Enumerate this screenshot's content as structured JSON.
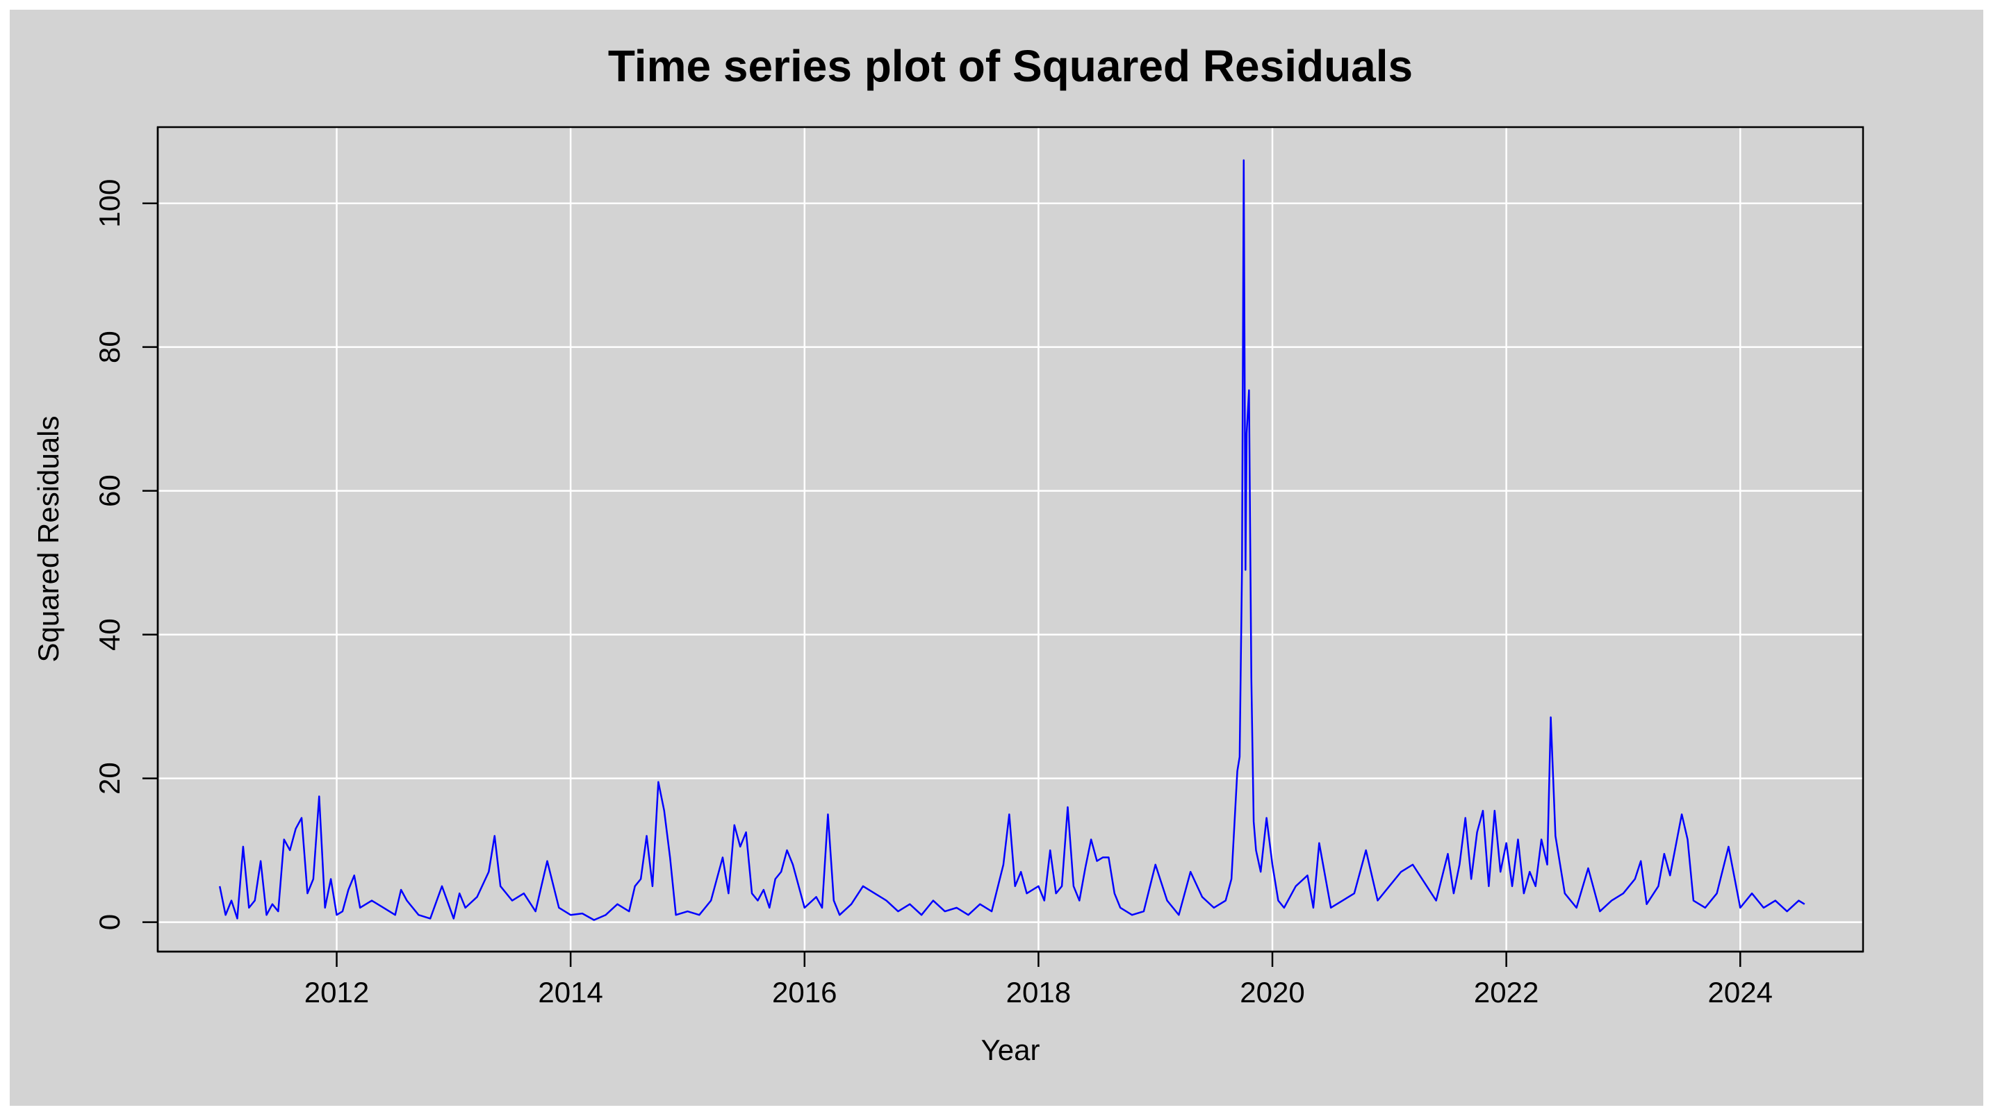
{
  "chart_data": {
    "type": "line",
    "title": "Time series plot of Squared Residuals",
    "x_label": "Year",
    "y_label": "Squared Residuals",
    "xlim": [
      2010.47,
      2025.05
    ],
    "ylim": [
      -4.1,
      110.6
    ],
    "xticks": [
      2012,
      2014,
      2016,
      2018,
      2020,
      2022,
      2024
    ],
    "yticks": [
      0,
      20,
      40,
      60,
      80,
      100
    ],
    "grid": true,
    "series": [
      {
        "name": "Squared Residuals",
        "color": "#0000ff",
        "x": [
          2011.0,
          2011.05,
          2011.1,
          2011.15,
          2011.2,
          2011.25,
          2011.3,
          2011.35,
          2011.4,
          2011.45,
          2011.5,
          2011.55,
          2011.6,
          2011.65,
          2011.7,
          2011.75,
          2011.8,
          2011.85,
          2011.9,
          2011.95,
          2012.0,
          2012.05,
          2012.1,
          2012.15,
          2012.2,
          2012.3,
          2012.4,
          2012.5,
          2012.55,
          2012.6,
          2012.7,
          2012.8,
          2012.9,
          2013.0,
          2013.05,
          2013.1,
          2013.2,
          2013.3,
          2013.35,
          2013.4,
          2013.5,
          2013.6,
          2013.7,
          2013.8,
          2013.9,
          2014.0,
          2014.1,
          2014.2,
          2014.3,
          2014.4,
          2014.5,
          2014.55,
          2014.6,
          2014.65,
          2014.7,
          2014.75,
          2014.8,
          2014.85,
          2014.9,
          2015.0,
          2015.1,
          2015.2,
          2015.3,
          2015.35,
          2015.4,
          2015.45,
          2015.5,
          2015.55,
          2015.6,
          2015.65,
          2015.7,
          2015.75,
          2015.8,
          2015.85,
          2015.9,
          2015.95,
          2016.0,
          2016.1,
          2016.15,
          2016.2,
          2016.25,
          2016.3,
          2016.4,
          2016.5,
          2016.6,
          2016.7,
          2016.8,
          2016.9,
          2017.0,
          2017.1,
          2017.2,
          2017.3,
          2017.4,
          2017.5,
          2017.6,
          2017.7,
          2017.75,
          2017.8,
          2017.85,
          2017.9,
          2018.0,
          2018.05,
          2018.1,
          2018.15,
          2018.2,
          2018.25,
          2018.3,
          2018.35,
          2018.4,
          2018.45,
          2018.5,
          2018.55,
          2018.6,
          2018.65,
          2018.7,
          2018.8,
          2018.9,
          2019.0,
          2019.1,
          2019.2,
          2019.3,
          2019.4,
          2019.5,
          2019.6,
          2019.65,
          2019.7,
          2019.72,
          2019.74,
          2019.755,
          2019.77,
          2019.78,
          2019.8,
          2019.82,
          2019.84,
          2019.86,
          2019.9,
          2019.95,
          2020.0,
          2020.05,
          2020.1,
          2020.2,
          2020.3,
          2020.35,
          2020.4,
          2020.5,
          2020.6,
          2020.7,
          2020.8,
          2020.9,
          2021.0,
          2021.1,
          2021.2,
          2021.3,
          2021.4,
          2021.5,
          2021.55,
          2021.6,
          2021.65,
          2021.7,
          2021.75,
          2021.8,
          2021.85,
          2021.9,
          2021.95,
          2022.0,
          2022.05,
          2022.1,
          2022.15,
          2022.2,
          2022.25,
          2022.3,
          2022.35,
          2022.38,
          2022.42,
          2022.5,
          2022.6,
          2022.7,
          2022.8,
          2022.9,
          2023.0,
          2023.1,
          2023.15,
          2023.2,
          2023.3,
          2023.35,
          2023.4,
          2023.5,
          2023.55,
          2023.6,
          2023.7,
          2023.8,
          2023.9,
          2024.0,
          2024.1,
          2024.2,
          2024.3,
          2024.4,
          2024.5,
          2024.55
        ],
        "values": [
          5,
          1,
          3,
          0.5,
          10.5,
          2,
          3,
          8.5,
          1,
          2.5,
          1.5,
          11.5,
          10,
          13,
          14.5,
          4,
          6,
          17.5,
          2,
          6,
          1,
          1.5,
          4.5,
          6.5,
          2,
          3,
          2,
          1,
          4.5,
          3,
          1,
          0.5,
          5,
          0.5,
          4,
          2,
          3.5,
          7,
          12,
          5,
          3,
          4,
          1.5,
          8.5,
          2,
          1,
          1.2,
          0.3,
          1,
          2.5,
          1.5,
          5,
          6,
          12,
          5,
          19.5,
          15.5,
          9,
          1,
          1.5,
          1,
          3,
          9,
          4,
          13.5,
          10.5,
          12.5,
          4,
          3,
          4.5,
          2,
          6,
          7,
          10,
          8,
          5,
          2,
          3.5,
          2,
          15,
          3,
          1,
          2.5,
          5,
          4,
          3,
          1.5,
          2.5,
          1,
          3,
          1.5,
          2,
          1,
          2.5,
          1.5,
          8,
          15,
          5,
          7,
          4,
          5,
          3,
          10,
          4,
          5,
          16,
          5,
          3,
          7.5,
          11.5,
          8.5,
          9,
          9,
          4,
          2,
          1,
          1.5,
          8,
          3,
          1,
          7,
          3.5,
          2,
          3,
          6,
          21,
          23,
          49,
          106,
          49,
          68,
          74,
          34,
          14,
          10,
          7,
          14.5,
          8,
          3,
          2,
          5,
          6.5,
          2,
          11,
          2,
          3,
          4,
          10,
          3,
          5,
          7,
          8,
          5.5,
          3,
          9.5,
          4,
          8,
          14.5,
          6,
          12.5,
          15.5,
          5,
          15.5,
          7,
          11,
          5,
          11.5,
          4,
          7,
          5,
          11.5,
          8,
          28.5,
          12,
          4,
          2,
          7.5,
          1.5,
          3,
          4,
          6,
          8.5,
          2.5,
          5,
          9.5,
          6.5,
          15,
          11.5,
          3,
          2,
          4,
          10.5,
          2,
          4,
          2,
          3,
          1.5,
          3,
          2.5
        ]
      }
    ]
  }
}
